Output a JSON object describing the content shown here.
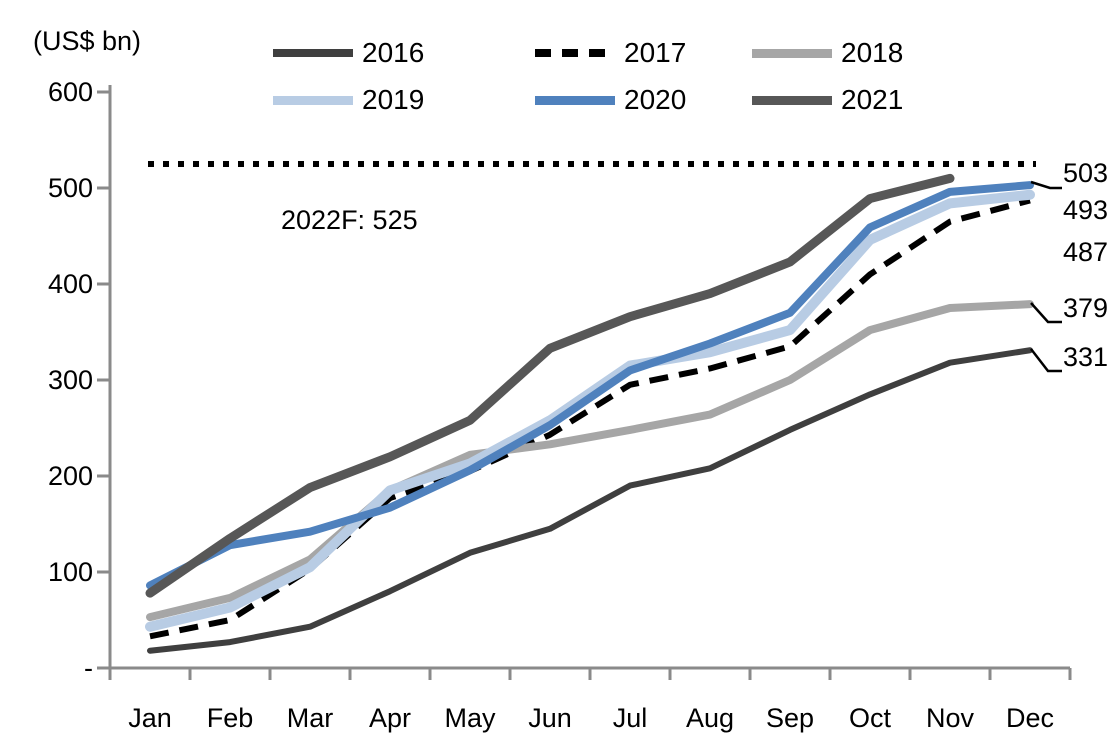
{
  "chart_data": {
    "type": "line",
    "title": "",
    "unit_label": "(US$ bn)",
    "annotation": "2022F: 525",
    "x_categories": [
      "Jan",
      "Feb",
      "Mar",
      "Apr",
      "May",
      "Jun",
      "Jul",
      "Aug",
      "Sep",
      "Oct",
      "Nov",
      "Dec"
    ],
    "y_tick_labels": [
      "600",
      "500",
      "400",
      "300",
      "200",
      "100",
      "-"
    ],
    "y_tick_values": [
      600,
      500,
      400,
      300,
      200,
      100,
      0
    ],
    "ylim": [
      0,
      600
    ],
    "grid": false,
    "legend_position": "top",
    "forecast_line": {
      "label": "2022F: 525",
      "value": 525,
      "style": "dotted",
      "color": "#000000"
    },
    "series": [
      {
        "name": "2016",
        "color": "#3f3f3f",
        "style": "solid",
        "values": [
          18,
          27,
          43,
          80,
          120,
          145,
          190,
          208,
          248,
          285,
          318,
          331
        ]
      },
      {
        "name": "2017",
        "color": "#000000",
        "style": "dashed",
        "values": [
          33,
          50,
          103,
          177,
          205,
          243,
          295,
          312,
          335,
          410,
          465,
          487
        ]
      },
      {
        "name": "2018",
        "color": "#a6a6a6",
        "style": "solid",
        "values": [
          53,
          73,
          113,
          185,
          222,
          233,
          248,
          264,
          300,
          352,
          375,
          379
        ]
      },
      {
        "name": "2019",
        "color": "#b8cce4",
        "style": "solid",
        "values": [
          43,
          63,
          105,
          185,
          213,
          258,
          315,
          329,
          352,
          446,
          484,
          493
        ]
      },
      {
        "name": "2020",
        "color": "#4f81bd",
        "style": "solid",
        "values": [
          86,
          128,
          142,
          167,
          206,
          253,
          310,
          338,
          370,
          459,
          496,
          503
        ]
      },
      {
        "name": "2021",
        "color": "#575757",
        "style": "solid",
        "values": [
          78,
          135,
          188,
          220,
          258,
          333,
          366,
          390,
          423,
          489,
          510
        ]
      }
    ],
    "end_labels": [
      {
        "text": "503",
        "series": "2020"
      },
      {
        "text": "493",
        "series": "2019"
      },
      {
        "text": "487",
        "series": "2017"
      },
      {
        "text": "379",
        "series": "2018"
      },
      {
        "text": "331",
        "series": "2016"
      }
    ]
  }
}
